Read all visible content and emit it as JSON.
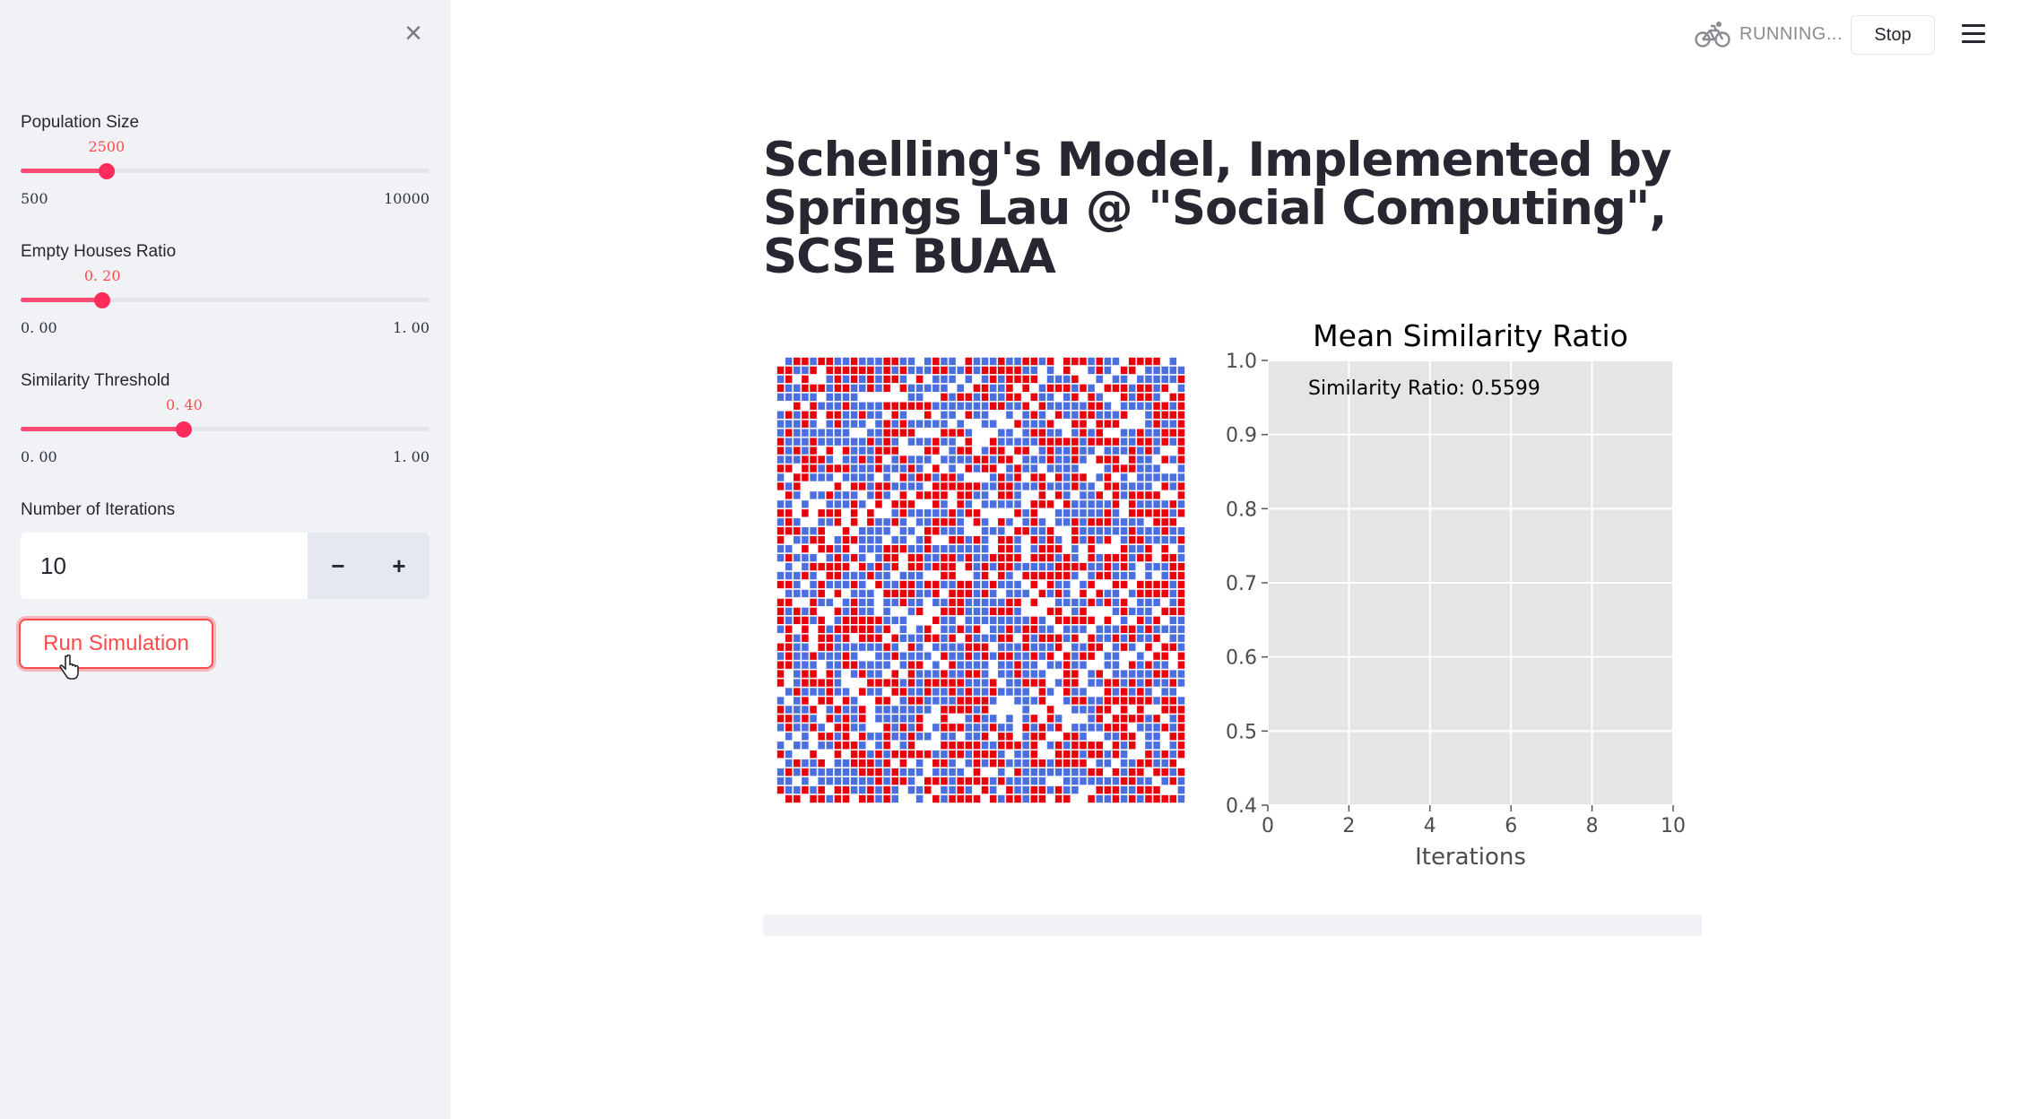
{
  "sidebar": {
    "close_icon": "close-icon",
    "population": {
      "label": "Population Size",
      "value": 2500,
      "value_text": "2500",
      "min": 500,
      "max": 10000,
      "min_text": "500",
      "max_text": "10000"
    },
    "empty_ratio": {
      "label": "Empty Houses Ratio",
      "value": 0.2,
      "value_text": "0. 20",
      "min": 0,
      "max": 1,
      "min_text": "0. 00",
      "max_text": "1. 00"
    },
    "similarity": {
      "label": "Similarity Threshold",
      "value": 0.4,
      "value_text": "0. 40",
      "min": 0,
      "max": 1,
      "min_text": "0. 00",
      "max_text": "1. 00"
    },
    "iterations": {
      "label": "Number of Iterations",
      "value": "10",
      "minus": "−",
      "plus": "+"
    },
    "run_button": "Run Simulation"
  },
  "header": {
    "status_icon": "bicycle-icon",
    "status_text": "RUNNING...",
    "stop_label": "Stop",
    "menu_icon": "hamburger-menu-icon"
  },
  "main": {
    "title": "Schelling's Model, Implemented by Springs Lau @ \"Social Computing\", SCSE BUAA",
    "grid": {
      "rows": 50,
      "cols": 50,
      "colors": {
        "red": "#e8000b",
        "blue": "#4c6fe0",
        "empty": "#ffffff"
      }
    },
    "progress": 0
  },
  "chart_data": {
    "type": "line",
    "title": "Mean Similarity Ratio",
    "xlabel": "Iterations",
    "ylabel": "",
    "xlim": [
      0,
      10
    ],
    "ylim": [
      0.4,
      1.0
    ],
    "xticks": [
      "0",
      "2",
      "4",
      "6",
      "8",
      "10"
    ],
    "yticks": [
      "0.4",
      "0.5",
      "0.6",
      "0.7",
      "0.8",
      "0.9",
      "1.0"
    ],
    "grid": true,
    "annotation": "Similarity Ratio: 0.5599",
    "series": [
      {
        "x": [
          0
        ],
        "y": [
          0.5599
        ]
      }
    ],
    "colors": {
      "background": "#e5e5e5",
      "gridline": "#ffffff"
    }
  }
}
